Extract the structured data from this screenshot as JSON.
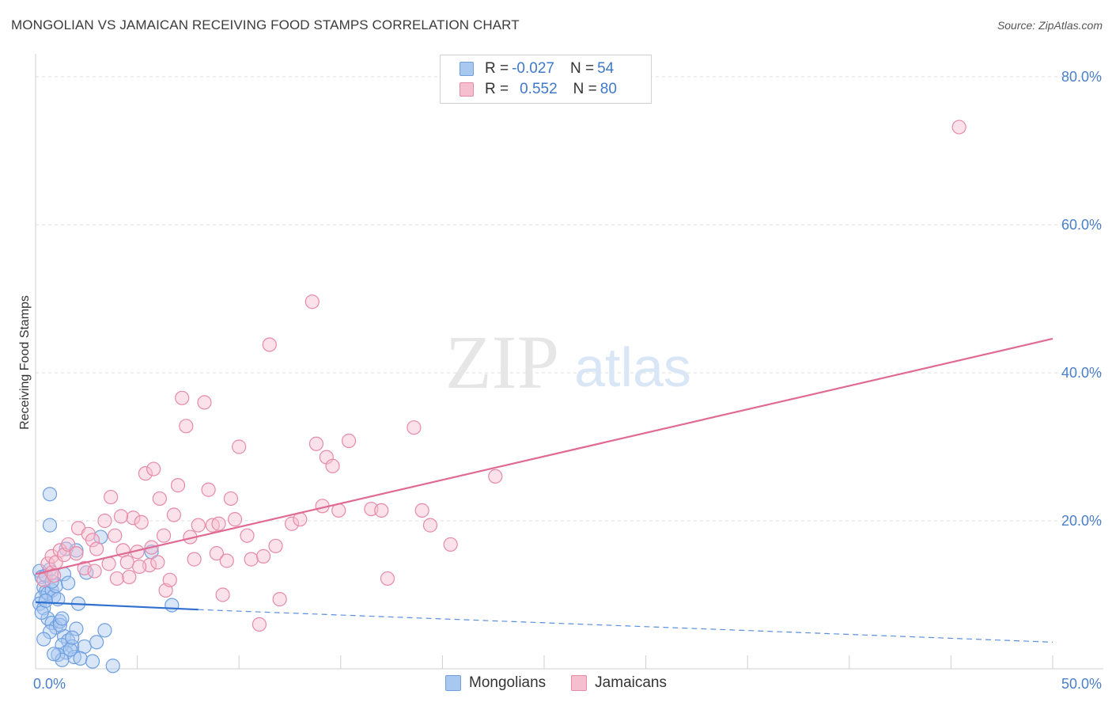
{
  "title": "MONGOLIAN VS JAMAICAN RECEIVING FOOD STAMPS CORRELATION CHART",
  "source": "Source: ZipAtlas.com",
  "watermark": {
    "zip": "ZIP",
    "atlas": "atlas"
  },
  "legend": {
    "rows": [
      {
        "r_label": "R = ",
        "r_value": "-0.027",
        "n_label": "N = ",
        "n_value": "54",
        "color": "#a9c8f0",
        "border": "#6f9fe0"
      },
      {
        "r_label": "R = ",
        "r_value": "0.552",
        "n_label": "N = ",
        "n_value": "80",
        "color": "#f6bfd0",
        "border": "#e68aa6"
      }
    ]
  },
  "bottom_legend": [
    {
      "label": "Mongolians",
      "color": "#a9c8f0",
      "border": "#6f9fe0"
    },
    {
      "label": "Jamaicans",
      "color": "#f6bfd0",
      "border": "#e68aa6"
    }
  ],
  "chart_data": {
    "type": "scatter",
    "title": "MONGOLIAN VS JAMAICAN RECEIVING FOOD STAMPS CORRELATION CHART",
    "xlabel": "",
    "ylabel": "Receiving Food Stamps",
    "xlim": [
      0,
      50
    ],
    "ylim": [
      0,
      80
    ],
    "x_ticks": [
      {
        "value": 0,
        "label": "0.0%"
      },
      {
        "value": 50,
        "label": "50.0%"
      }
    ],
    "y_ticks": [
      {
        "value": 20,
        "label": "20.0%"
      },
      {
        "value": 40,
        "label": "40.0%"
      },
      {
        "value": 60,
        "label": "60.0%"
      },
      {
        "value": 80,
        "label": "80.0%"
      }
    ],
    "series": [
      {
        "name": "Mongolians",
        "color": "#6f9fe0",
        "fill": "#a9c8f0",
        "trend": {
          "x0": 0,
          "y0": 9.0,
          "x1": 8,
          "y1": 8.0,
          "x_end": 50,
          "y_end": 3.6
        },
        "points": [
          [
            0.2,
            13.2
          ],
          [
            0.3,
            12.4
          ],
          [
            0.4,
            11.0
          ],
          [
            0.5,
            10.4
          ],
          [
            0.3,
            9.6
          ],
          [
            0.2,
            8.8
          ],
          [
            0.4,
            8.2
          ],
          [
            0.6,
            10.2
          ],
          [
            0.5,
            12.6
          ],
          [
            0.7,
            13.4
          ],
          [
            0.8,
            10.6
          ],
          [
            0.9,
            9.8
          ],
          [
            1.0,
            11.2
          ],
          [
            1.1,
            9.4
          ],
          [
            0.6,
            6.8
          ],
          [
            0.8,
            6.2
          ],
          [
            1.0,
            5.6
          ],
          [
            1.2,
            6.4
          ],
          [
            0.7,
            5.0
          ],
          [
            1.4,
            4.4
          ],
          [
            1.6,
            3.8
          ],
          [
            1.3,
            3.2
          ],
          [
            1.8,
            3.0
          ],
          [
            1.5,
            2.2
          ],
          [
            1.9,
            1.6
          ],
          [
            2.0,
            5.4
          ],
          [
            2.4,
            3.0
          ],
          [
            2.2,
            1.4
          ],
          [
            1.1,
            1.9
          ],
          [
            1.3,
            1.2
          ],
          [
            0.9,
            2.0
          ],
          [
            1.7,
            2.6
          ],
          [
            0.7,
            23.6
          ],
          [
            0.7,
            19.4
          ],
          [
            1.5,
            16.2
          ],
          [
            2.0,
            16.0
          ],
          [
            1.4,
            12.8
          ],
          [
            2.5,
            13.0
          ],
          [
            3.2,
            17.8
          ],
          [
            3.4,
            5.2
          ],
          [
            3.0,
            3.6
          ],
          [
            3.8,
            0.4
          ],
          [
            5.7,
            15.8
          ],
          [
            6.7,
            8.6
          ],
          [
            0.3,
            7.6
          ],
          [
            1.2,
            5.9
          ],
          [
            0.5,
            9.2
          ],
          [
            1.8,
            4.2
          ],
          [
            0.8,
            11.8
          ],
          [
            1.6,
            11.6
          ],
          [
            1.3,
            6.8
          ],
          [
            2.1,
            8.8
          ],
          [
            0.4,
            4.0
          ],
          [
            2.8,
            1.0
          ]
        ]
      },
      {
        "name": "Jamaicans",
        "color": "#e68aa6",
        "fill": "#f6bfd0",
        "trend": {
          "x0": 0,
          "y0": 12.8,
          "x1": 50,
          "y1": 44.6
        },
        "points": [
          [
            0.4,
            12.0
          ],
          [
            0.6,
            14.2
          ],
          [
            0.8,
            13.0
          ],
          [
            0.8,
            15.2
          ],
          [
            1.0,
            14.4
          ],
          [
            1.2,
            16.0
          ],
          [
            1.4,
            15.4
          ],
          [
            1.6,
            16.8
          ],
          [
            2.0,
            15.6
          ],
          [
            2.1,
            19.0
          ],
          [
            2.4,
            13.6
          ],
          [
            2.6,
            18.2
          ],
          [
            2.8,
            17.4
          ],
          [
            3.0,
            16.2
          ],
          [
            3.4,
            20.0
          ],
          [
            3.6,
            14.2
          ],
          [
            3.7,
            23.2
          ],
          [
            3.9,
            18.0
          ],
          [
            4.0,
            12.2
          ],
          [
            4.3,
            16.0
          ],
          [
            4.5,
            14.4
          ],
          [
            4.6,
            12.4
          ],
          [
            4.8,
            20.4
          ],
          [
            5.0,
            15.8
          ],
          [
            5.2,
            19.8
          ],
          [
            5.4,
            26.4
          ],
          [
            5.6,
            14.0
          ],
          [
            5.7,
            16.4
          ],
          [
            5.8,
            27.0
          ],
          [
            6.0,
            14.4
          ],
          [
            6.3,
            18.0
          ],
          [
            6.4,
            10.6
          ],
          [
            6.6,
            12.0
          ],
          [
            6.8,
            20.8
          ],
          [
            7.0,
            24.8
          ],
          [
            7.2,
            36.6
          ],
          [
            7.4,
            32.8
          ],
          [
            7.6,
            17.8
          ],
          [
            7.8,
            14.8
          ],
          [
            8.0,
            19.4
          ],
          [
            8.3,
            36.0
          ],
          [
            8.5,
            24.2
          ],
          [
            8.7,
            19.4
          ],
          [
            8.9,
            15.6
          ],
          [
            9.2,
            10.0
          ],
          [
            9.4,
            14.6
          ],
          [
            9.6,
            23.0
          ],
          [
            9.8,
            20.2
          ],
          [
            10.0,
            30.0
          ],
          [
            10.4,
            18.0
          ],
          [
            10.6,
            14.8
          ],
          [
            11.0,
            6.0
          ],
          [
            11.2,
            15.2
          ],
          [
            11.5,
            43.8
          ],
          [
            11.8,
            16.6
          ],
          [
            12.0,
            9.4
          ],
          [
            12.6,
            19.6
          ],
          [
            13.0,
            20.2
          ],
          [
            13.6,
            49.6
          ],
          [
            13.8,
            30.4
          ],
          [
            14.1,
            22.0
          ],
          [
            14.3,
            28.6
          ],
          [
            14.6,
            27.4
          ],
          [
            14.9,
            21.4
          ],
          [
            15.4,
            30.8
          ],
          [
            16.5,
            21.6
          ],
          [
            17.0,
            21.4
          ],
          [
            17.3,
            12.2
          ],
          [
            18.6,
            32.6
          ],
          [
            19.0,
            21.4
          ],
          [
            19.4,
            19.4
          ],
          [
            20.4,
            16.8
          ],
          [
            22.6,
            26.0
          ],
          [
            45.4,
            73.2
          ],
          [
            5.1,
            13.8
          ],
          [
            2.9,
            13.2
          ],
          [
            9.0,
            19.6
          ],
          [
            0.9,
            12.6
          ],
          [
            4.2,
            20.6
          ],
          [
            6.1,
            23.0
          ]
        ]
      }
    ]
  }
}
